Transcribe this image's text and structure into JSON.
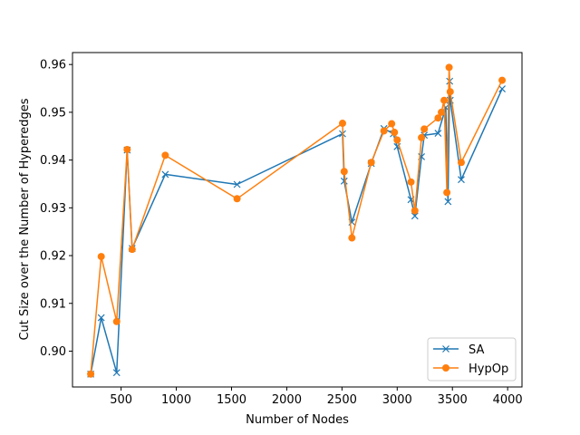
{
  "chart_data": {
    "type": "line",
    "xlabel": "Number of Nodes",
    "ylabel": "Cut Size over the Number of Hyperedges",
    "xlim": [
      60,
      4130
    ],
    "ylim": [
      0.8925,
      0.9625
    ],
    "xticks": [
      {
        "value": 500,
        "label": "500"
      },
      {
        "value": 1000,
        "label": "1000"
      },
      {
        "value": 1500,
        "label": "1500"
      },
      {
        "value": 2000,
        "label": "2000"
      },
      {
        "value": 2500,
        "label": "2500"
      },
      {
        "value": 3000,
        "label": "3000"
      },
      {
        "value": 3500,
        "label": "3500"
      },
      {
        "value": 4000,
        "label": "4000"
      }
    ],
    "yticks": [
      {
        "value": 0.9,
        "label": "0.90"
      },
      {
        "value": 0.91,
        "label": "0.91"
      },
      {
        "value": 0.92,
        "label": "0.92"
      },
      {
        "value": 0.93,
        "label": "0.93"
      },
      {
        "value": 0.94,
        "label": "0.94"
      },
      {
        "value": 0.95,
        "label": "0.95"
      },
      {
        "value": 0.96,
        "label": "0.96"
      }
    ],
    "grid": false,
    "legend_position": "lower-right",
    "series": [
      {
        "name": "SA",
        "color": "#1f77b4",
        "marker": "x",
        "points": [
          [
            225,
            0.8952
          ],
          [
            320,
            0.907
          ],
          [
            460,
            0.8955
          ],
          [
            555,
            0.9421
          ],
          [
            600,
            0.9215
          ],
          [
            900,
            0.937
          ],
          [
            1550,
            0.9349
          ],
          [
            2505,
            0.9455
          ],
          [
            2520,
            0.9356
          ],
          [
            2590,
            0.927
          ],
          [
            2765,
            0.9393
          ],
          [
            2880,
            0.9466
          ],
          [
            2965,
            0.9455
          ],
          [
            3000,
            0.9428
          ],
          [
            3125,
            0.9317
          ],
          [
            3160,
            0.9283
          ],
          [
            3220,
            0.9407
          ],
          [
            3245,
            0.9452
          ],
          [
            3370,
            0.9456
          ],
          [
            3440,
            0.951
          ],
          [
            3460,
            0.9313
          ],
          [
            3475,
            0.9565
          ],
          [
            3480,
            0.9525
          ],
          [
            3580,
            0.9359
          ],
          [
            3950,
            0.9549
          ]
        ]
      },
      {
        "name": "HypOp",
        "color": "#ff7f0e",
        "marker": "o",
        "points": [
          [
            225,
            0.8952
          ],
          [
            320,
            0.9198
          ],
          [
            460,
            0.9062
          ],
          [
            555,
            0.9422
          ],
          [
            600,
            0.9213
          ],
          [
            900,
            0.941
          ],
          [
            1550,
            0.9319
          ],
          [
            2505,
            0.9477
          ],
          [
            2520,
            0.9376
          ],
          [
            2590,
            0.9237
          ],
          [
            2765,
            0.9395
          ],
          [
            2880,
            0.9461
          ],
          [
            2950,
            0.9476
          ],
          [
            2975,
            0.9458
          ],
          [
            3000,
            0.9442
          ],
          [
            3125,
            0.9354
          ],
          [
            3160,
            0.9294
          ],
          [
            3220,
            0.9447
          ],
          [
            3245,
            0.9465
          ],
          [
            3370,
            0.9488
          ],
          [
            3400,
            0.95
          ],
          [
            3425,
            0.9525
          ],
          [
            3450,
            0.9332
          ],
          [
            3470,
            0.9594
          ],
          [
            3480,
            0.9543
          ],
          [
            3580,
            0.9395
          ],
          [
            3950,
            0.9567
          ]
        ]
      }
    ]
  }
}
